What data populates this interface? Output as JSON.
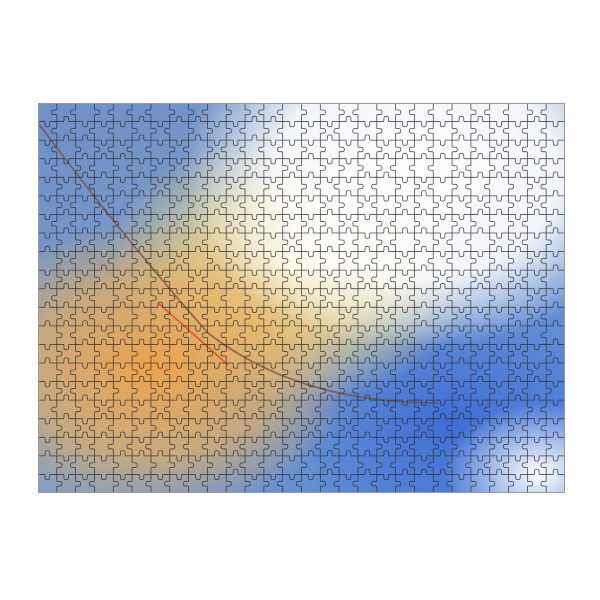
{
  "image": {
    "subject": "jigsaw-puzzle",
    "colors": {
      "blue": "#5b86d8",
      "deep_blue": "#3f6fd0",
      "yellow": "#f3dc8e",
      "orange": "#eea24e",
      "white": "#ffffff",
      "teal": "#6f97a8",
      "outline": "#2e2e2e",
      "streak": "#d94a1e"
    }
  }
}
